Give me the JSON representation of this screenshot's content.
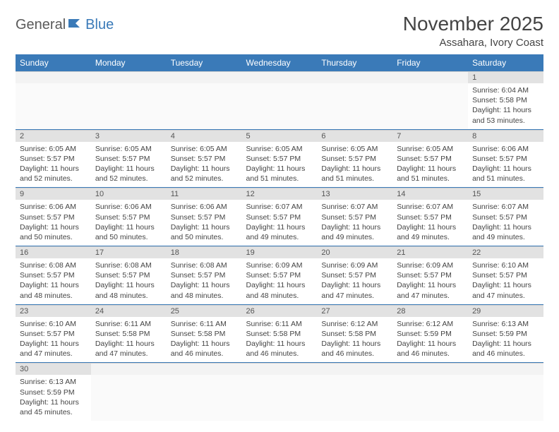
{
  "logo": {
    "text1": "General",
    "text2": "Blue",
    "color_gray": "#5a5a5a",
    "color_blue": "#3a7ab8"
  },
  "title": "November 2025",
  "location": "Assahara, Ivory Coast",
  "colors": {
    "header_bg": "#3a7ab8",
    "header_fg": "#ffffff",
    "daynum_bg": "#e2e2e2",
    "row_divider": "#3a7ab8",
    "text": "#444444",
    "background": "#ffffff"
  },
  "day_labels": [
    "Sunday",
    "Monday",
    "Tuesday",
    "Wednesday",
    "Thursday",
    "Friday",
    "Saturday"
  ],
  "weeks": [
    [
      null,
      null,
      null,
      null,
      null,
      null,
      {
        "n": "1",
        "sr": "6:04 AM",
        "ss": "5:58 PM",
        "dl": "11 hours and 53 minutes."
      }
    ],
    [
      {
        "n": "2",
        "sr": "6:05 AM",
        "ss": "5:57 PM",
        "dl": "11 hours and 52 minutes."
      },
      {
        "n": "3",
        "sr": "6:05 AM",
        "ss": "5:57 PM",
        "dl": "11 hours and 52 minutes."
      },
      {
        "n": "4",
        "sr": "6:05 AM",
        "ss": "5:57 PM",
        "dl": "11 hours and 52 minutes."
      },
      {
        "n": "5",
        "sr": "6:05 AM",
        "ss": "5:57 PM",
        "dl": "11 hours and 51 minutes."
      },
      {
        "n": "6",
        "sr": "6:05 AM",
        "ss": "5:57 PM",
        "dl": "11 hours and 51 minutes."
      },
      {
        "n": "7",
        "sr": "6:05 AM",
        "ss": "5:57 PM",
        "dl": "11 hours and 51 minutes."
      },
      {
        "n": "8",
        "sr": "6:06 AM",
        "ss": "5:57 PM",
        "dl": "11 hours and 51 minutes."
      }
    ],
    [
      {
        "n": "9",
        "sr": "6:06 AM",
        "ss": "5:57 PM",
        "dl": "11 hours and 50 minutes."
      },
      {
        "n": "10",
        "sr": "6:06 AM",
        "ss": "5:57 PM",
        "dl": "11 hours and 50 minutes."
      },
      {
        "n": "11",
        "sr": "6:06 AM",
        "ss": "5:57 PM",
        "dl": "11 hours and 50 minutes."
      },
      {
        "n": "12",
        "sr": "6:07 AM",
        "ss": "5:57 PM",
        "dl": "11 hours and 49 minutes."
      },
      {
        "n": "13",
        "sr": "6:07 AM",
        "ss": "5:57 PM",
        "dl": "11 hours and 49 minutes."
      },
      {
        "n": "14",
        "sr": "6:07 AM",
        "ss": "5:57 PM",
        "dl": "11 hours and 49 minutes."
      },
      {
        "n": "15",
        "sr": "6:07 AM",
        "ss": "5:57 PM",
        "dl": "11 hours and 49 minutes."
      }
    ],
    [
      {
        "n": "16",
        "sr": "6:08 AM",
        "ss": "5:57 PM",
        "dl": "11 hours and 48 minutes."
      },
      {
        "n": "17",
        "sr": "6:08 AM",
        "ss": "5:57 PM",
        "dl": "11 hours and 48 minutes."
      },
      {
        "n": "18",
        "sr": "6:08 AM",
        "ss": "5:57 PM",
        "dl": "11 hours and 48 minutes."
      },
      {
        "n": "19",
        "sr": "6:09 AM",
        "ss": "5:57 PM",
        "dl": "11 hours and 48 minutes."
      },
      {
        "n": "20",
        "sr": "6:09 AM",
        "ss": "5:57 PM",
        "dl": "11 hours and 47 minutes."
      },
      {
        "n": "21",
        "sr": "6:09 AM",
        "ss": "5:57 PM",
        "dl": "11 hours and 47 minutes."
      },
      {
        "n": "22",
        "sr": "6:10 AM",
        "ss": "5:57 PM",
        "dl": "11 hours and 47 minutes."
      }
    ],
    [
      {
        "n": "23",
        "sr": "6:10 AM",
        "ss": "5:57 PM",
        "dl": "11 hours and 47 minutes."
      },
      {
        "n": "24",
        "sr": "6:11 AM",
        "ss": "5:58 PM",
        "dl": "11 hours and 47 minutes."
      },
      {
        "n": "25",
        "sr": "6:11 AM",
        "ss": "5:58 PM",
        "dl": "11 hours and 46 minutes."
      },
      {
        "n": "26",
        "sr": "6:11 AM",
        "ss": "5:58 PM",
        "dl": "11 hours and 46 minutes."
      },
      {
        "n": "27",
        "sr": "6:12 AM",
        "ss": "5:58 PM",
        "dl": "11 hours and 46 minutes."
      },
      {
        "n": "28",
        "sr": "6:12 AM",
        "ss": "5:59 PM",
        "dl": "11 hours and 46 minutes."
      },
      {
        "n": "29",
        "sr": "6:13 AM",
        "ss": "5:59 PM",
        "dl": "11 hours and 46 minutes."
      }
    ],
    [
      {
        "n": "30",
        "sr": "6:13 AM",
        "ss": "5:59 PM",
        "dl": "11 hours and 45 minutes."
      },
      null,
      null,
      null,
      null,
      null,
      null
    ]
  ],
  "labels": {
    "sunrise": "Sunrise:",
    "sunset": "Sunset:",
    "daylight": "Daylight:"
  }
}
